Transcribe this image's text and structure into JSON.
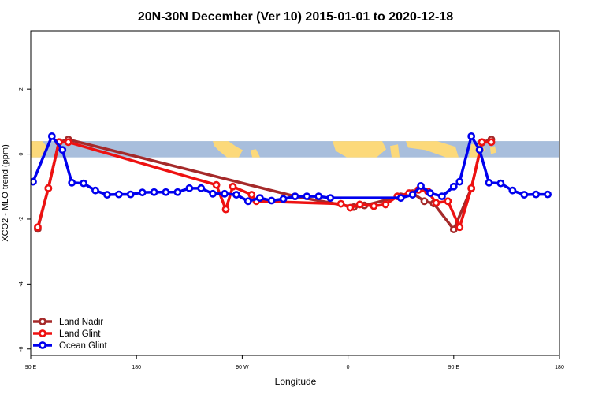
{
  "chart_data": {
    "type": "line",
    "title": "20N-30N December (Ver 10)   2015-01-01 to 2020-12-18",
    "xlabel": "Longitude",
    "ylabel": "XCO2 - MLO trend (ppm)",
    "xlim": [
      90,
      540
    ],
    "ylim": [
      -6.2,
      3.8
    ],
    "x_ticks": [
      {
        "value": 90,
        "label": "90 E"
      },
      {
        "value": 180,
        "label": "180"
      },
      {
        "value": 270,
        "label": "90 W"
      },
      {
        "value": 360,
        "label": "0"
      },
      {
        "value": 450,
        "label": "90 E"
      },
      {
        "value": 540,
        "label": "180"
      }
    ],
    "y_ticks": [
      {
        "value": 2,
        "label": "2"
      },
      {
        "value": 0,
        "label": "0"
      },
      {
        "value": -2,
        "label": "-2"
      },
      {
        "value": -4,
        "label": "-4"
      },
      {
        "value": -6,
        "label": "-6"
      }
    ],
    "map_band": {
      "y_range": [
        -0.1,
        0.4
      ],
      "ocean_color": "#a8bedc",
      "land_color": "#fcd97a"
    },
    "legend_position": "bottom-left",
    "series": [
      {
        "name": "Land Nadir",
        "color": "#a52a2a",
        "points": [
          [
            96,
            -2.3
          ],
          [
            105,
            -1.05
          ],
          [
            114,
            0.37
          ],
          [
            122,
            0.45
          ],
          [
            315,
            -1.3
          ],
          [
            365,
            -1.63
          ],
          [
            374,
            -1.58
          ],
          [
            405,
            -1.3
          ],
          [
            415,
            -1.2
          ],
          [
            425,
            -1.45
          ],
          [
            433,
            -1.52
          ],
          [
            450,
            -2.32
          ],
          [
            465,
            -1.05
          ],
          [
            474,
            0.36
          ],
          [
            482,
            0.45
          ]
        ]
      },
      {
        "name": "Land Glint",
        "color": "#ee1111",
        "points": [
          [
            96,
            -2.25
          ],
          [
            105,
            -1.05
          ],
          [
            114,
            0.37
          ],
          [
            122,
            0.37
          ],
          [
            248,
            -0.95
          ],
          [
            256,
            -1.7
          ],
          [
            262,
            -1.0
          ],
          [
            278,
            -1.25
          ],
          [
            282,
            -1.45
          ],
          [
            354,
            -1.53
          ],
          [
            362,
            -1.65
          ],
          [
            370,
            -1.55
          ],
          [
            382,
            -1.6
          ],
          [
            392,
            -1.55
          ],
          [
            402,
            -1.3
          ],
          [
            412,
            -1.2
          ],
          [
            420,
            -1.1
          ],
          [
            428,
            -1.15
          ],
          [
            435,
            -1.5
          ],
          [
            445,
            -1.45
          ],
          [
            455,
            -2.25
          ],
          [
            465,
            -1.05
          ],
          [
            474,
            0.37
          ],
          [
            482,
            0.37
          ]
        ]
      },
      {
        "name": "Ocean Glint",
        "color": "#0000ee",
        "points": [
          [
            92,
            -0.85
          ],
          [
            108,
            0.55
          ],
          [
            117,
            0.13
          ],
          [
            125,
            -0.88
          ],
          [
            135,
            -0.9
          ],
          [
            145,
            -1.12
          ],
          [
            155,
            -1.25
          ],
          [
            165,
            -1.24
          ],
          [
            175,
            -1.24
          ],
          [
            185,
            -1.18
          ],
          [
            195,
            -1.17
          ],
          [
            205,
            -1.17
          ],
          [
            215,
            -1.17
          ],
          [
            225,
            -1.05
          ],
          [
            235,
            -1.05
          ],
          [
            245,
            -1.22
          ],
          [
            255,
            -1.22
          ],
          [
            265,
            -1.25
          ],
          [
            275,
            -1.45
          ],
          [
            285,
            -1.35
          ],
          [
            295,
            -1.43
          ],
          [
            305,
            -1.38
          ],
          [
            315,
            -1.3
          ],
          [
            325,
            -1.3
          ],
          [
            335,
            -1.3
          ],
          [
            345,
            -1.35
          ],
          [
            405,
            -1.35
          ],
          [
            415,
            -1.25
          ],
          [
            422,
            -0.98
          ],
          [
            430,
            -1.2
          ],
          [
            440,
            -1.3
          ],
          [
            450,
            -1.0
          ],
          [
            455,
            -0.85
          ],
          [
            465,
            0.55
          ],
          [
            472,
            0.13
          ],
          [
            480,
            -0.88
          ],
          [
            490,
            -0.9
          ],
          [
            500,
            -1.12
          ],
          [
            510,
            -1.25
          ],
          [
            520,
            -1.24
          ],
          [
            530,
            -1.24
          ]
        ]
      }
    ]
  }
}
